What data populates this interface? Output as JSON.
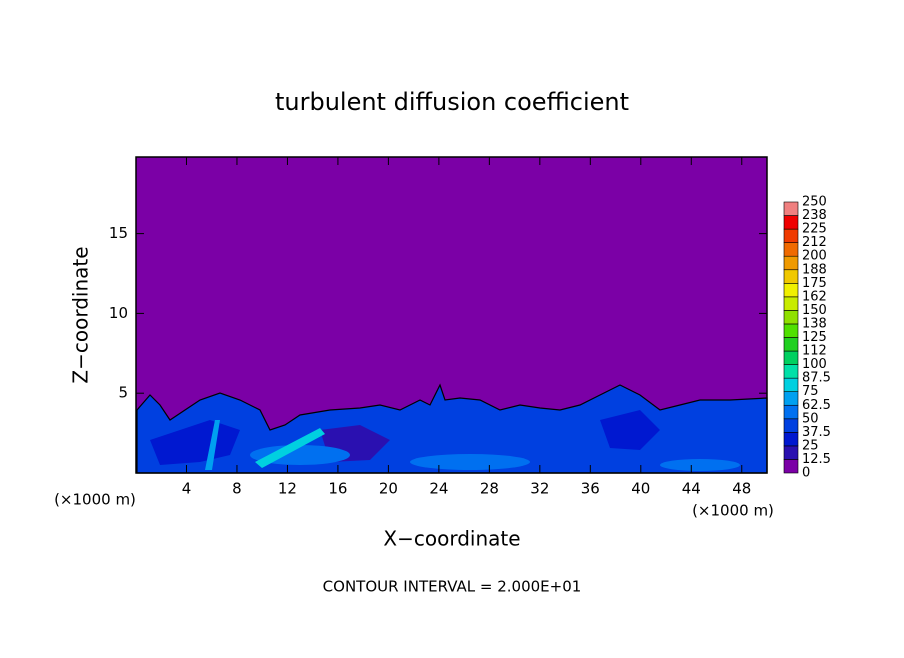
{
  "chart_data": {
    "type": "contour",
    "title": "turbulent diffusion coefficient",
    "x_label": "X−coordinate",
    "y_label": "Z−coordinate",
    "x_unit": "(×1000 m)",
    "footer": "CONTOUR INTERVAL = 2.000E+01",
    "xlim": [
      0,
      50
    ],
    "xticks": [
      4,
      8,
      12,
      16,
      20,
      24,
      28,
      32,
      36,
      40,
      44,
      48
    ],
    "ylim": [
      0,
      19.8
    ],
    "yticks": [
      5,
      10,
      15
    ],
    "colorbar": {
      "levels": [
        0,
        12.5,
        25,
        37.5,
        50,
        62.5,
        75,
        87.5,
        100,
        112,
        125,
        138,
        150,
        162,
        175,
        188,
        200,
        212,
        225,
        238,
        250
      ],
      "colors": [
        "#7b00a6",
        "#2a10b0",
        "#0018d0",
        "#0040e0",
        "#0070f0",
        "#00a0f0",
        "#00d0e0",
        "#00e0a8",
        "#00d060",
        "#20d020",
        "#50e000",
        "#90e000",
        "#c8ec00",
        "#f0f000",
        "#f0c800",
        "#f09a00",
        "#f06a00",
        "#f03a00",
        "#f00000",
        "#f08080"
      ]
    }
  }
}
